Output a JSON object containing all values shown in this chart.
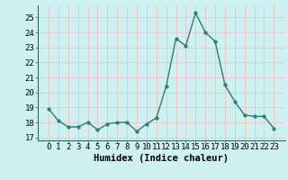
{
  "xlabel": "Humidex (Indice chaleur)",
  "x": [
    0,
    1,
    2,
    3,
    4,
    5,
    6,
    7,
    8,
    9,
    10,
    11,
    12,
    13,
    14,
    15,
    16,
    17,
    18,
    19,
    20,
    21,
    22,
    23
  ],
  "y": [
    18.9,
    18.1,
    17.7,
    17.7,
    18.0,
    17.5,
    17.9,
    18.0,
    18.0,
    17.4,
    17.9,
    18.3,
    20.4,
    23.6,
    23.1,
    25.3,
    24.0,
    23.4,
    20.5,
    19.4,
    18.5,
    18.4,
    18.4,
    17.6
  ],
  "line_color": "#2e7d6e",
  "marker_size": 2.5,
  "line_width": 1.0,
  "bg_color": "#cff0f0",
  "grid_color": "#e8c8c8",
  "ylim": [
    16.8,
    25.8
  ],
  "yticks": [
    17,
    18,
    19,
    20,
    21,
    22,
    23,
    24,
    25
  ],
  "xticks": [
    0,
    1,
    2,
    3,
    4,
    5,
    6,
    7,
    8,
    9,
    10,
    11,
    12,
    13,
    14,
    15,
    16,
    17,
    18,
    19,
    20,
    21,
    22,
    23
  ],
  "tick_fontsize": 6.5,
  "xlabel_fontsize": 7.5
}
